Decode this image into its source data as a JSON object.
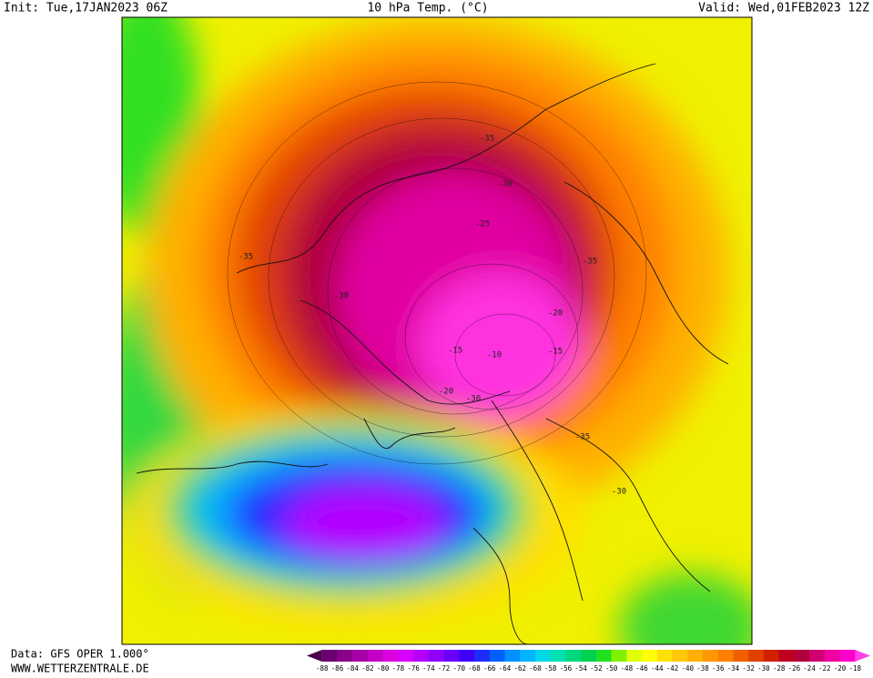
{
  "header": {
    "init": "Init: Tue,17JAN2023 06Z",
    "title": "10 hPa Temp. (°C)",
    "valid": "Valid: Wed,01FEB2023 12Z"
  },
  "footer": {
    "source": "Data: GFS OPER 1.000°",
    "site": "WWW.WETTERZENTRALE.DE"
  },
  "map": {
    "contour_labels": [
      "-35",
      "-30",
      "-35",
      "-30",
      "-25",
      "-35",
      "-20",
      "-15",
      "-10",
      "-15",
      "-20",
      "-30",
      "-35",
      "-30"
    ]
  },
  "colorbar": {
    "labels": [
      -88,
      -86,
      -84,
      -82,
      -80,
      -78,
      -76,
      -74,
      -72,
      -70,
      -68,
      -66,
      -64,
      -62,
      -60,
      -58,
      -56,
      -54,
      -52,
      -50,
      -48,
      -46,
      -44,
      -42,
      -40,
      -38,
      -36,
      -34,
      -32,
      -30,
      -28,
      -26,
      -24,
      -22,
      -20,
      -18
    ],
    "colors": [
      "#4a0048",
      "#6a0070",
      "#8a008a",
      "#a800a8",
      "#c400c4",
      "#dc00e0",
      "#d800ff",
      "#b400ff",
      "#9000ff",
      "#6a00ff",
      "#4000ff",
      "#1e2cff",
      "#0060ff",
      "#0090ff",
      "#00b4ff",
      "#00d8e8",
      "#00e0b0",
      "#00d880",
      "#00d050",
      "#20e020",
      "#80f000",
      "#e0ff00",
      "#ffff00",
      "#ffe000",
      "#ffc800",
      "#ffb000",
      "#ff9800",
      "#ff8000",
      "#f06000",
      "#e04000",
      "#d02000",
      "#c00020",
      "#b0003a",
      "#d00070",
      "#f000a0",
      "#ff00cc",
      "#ff40e8"
    ]
  }
}
